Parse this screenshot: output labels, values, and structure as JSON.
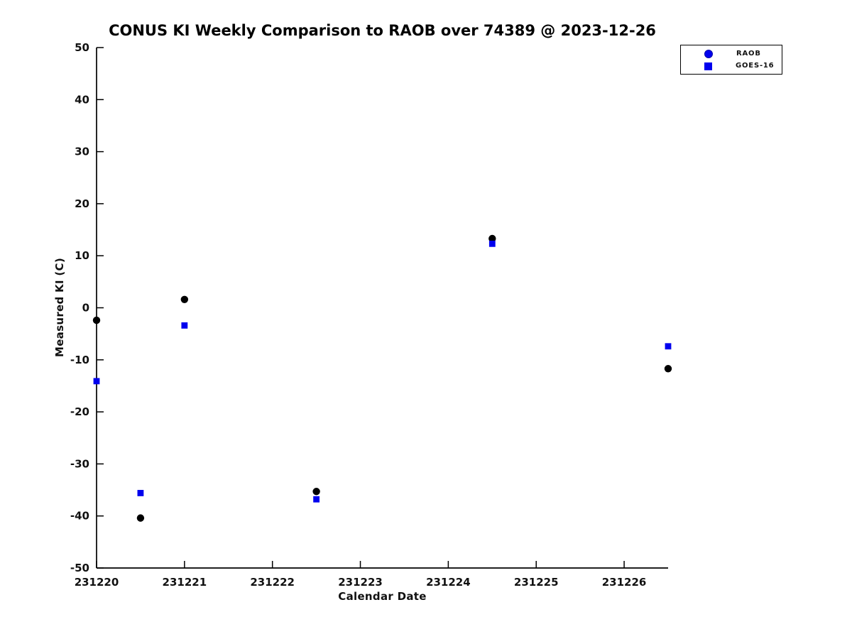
{
  "figure": {
    "background": "#ffffff",
    "axis_color": "#111111"
  },
  "chart_data": {
    "type": "scatter",
    "title": "CONUS KI Weekly Comparison to RAOB over 74389 @ 2023-12-26",
    "xlabel": "Calendar Date",
    "ylabel": "Measured KI (C)",
    "xlim": [
      231220,
      231226.5
    ],
    "ylim": [
      -50,
      50
    ],
    "grid": false,
    "x_tick_values": [
      231220,
      231221,
      231222,
      231223,
      231224,
      231225,
      231226
    ],
    "x_tick_labels": [
      "231220",
      "231221",
      "231222",
      "231223",
      "231224",
      "231225",
      "231226"
    ],
    "y_tick_values": [
      -50,
      -40,
      -30,
      -20,
      -10,
      0,
      10,
      20,
      30,
      40,
      50
    ],
    "y_tick_labels": [
      "-50",
      "-40",
      "-30",
      "-20",
      "-10",
      "0",
      "10",
      "20",
      "30",
      "40",
      "50"
    ],
    "legend": {
      "position": "top-right",
      "entries": [
        {
          "label": "RAOB",
          "marker": "circle",
          "color": "#0000ee"
        },
        {
          "label": "GOES-16",
          "marker": "square",
          "color": "#0000ee"
        }
      ]
    },
    "series": [
      {
        "name": "RAOB",
        "marker": "circle",
        "color": "#000000",
        "points": [
          {
            "x": 231220.0,
            "y": -2.4
          },
          {
            "x": 231220.5,
            "y": -40.4
          },
          {
            "x": 231221.0,
            "y": 1.6
          },
          {
            "x": 231222.5,
            "y": -35.3
          },
          {
            "x": 231224.5,
            "y": 13.3
          },
          {
            "x": 231226.5,
            "y": -11.7
          }
        ]
      },
      {
        "name": "GOES-16",
        "marker": "square",
        "color": "#0000ee",
        "points": [
          {
            "x": 231220.0,
            "y": -14.1
          },
          {
            "x": 231220.5,
            "y": -35.6
          },
          {
            "x": 231221.0,
            "y": -3.4
          },
          {
            "x": 231222.5,
            "y": -36.8
          },
          {
            "x": 231224.5,
            "y": 12.3
          },
          {
            "x": 231226.5,
            "y": -7.4
          }
        ]
      }
    ]
  }
}
